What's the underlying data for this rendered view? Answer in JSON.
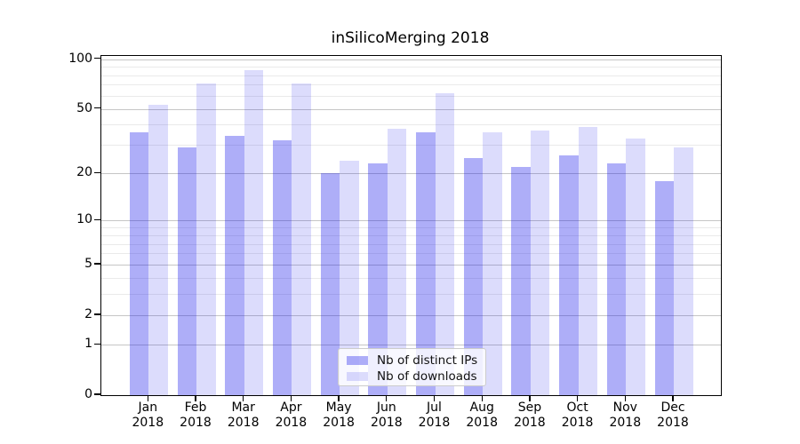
{
  "figure": {
    "background": "#ffffff"
  },
  "chart_data": {
    "type": "bar",
    "title": "inSilicoMerging 2018",
    "categories": [
      "Jan",
      "Feb",
      "Mar",
      "Apr",
      "May",
      "Jun",
      "Jul",
      "Aug",
      "Sep",
      "Oct",
      "Nov",
      "Dec"
    ],
    "category_year": "2018",
    "series": [
      {
        "name": "Nb of distinct IPs",
        "color": "#aaaaf6",
        "fill": "rgba(13,13,235,0.335)",
        "values": [
          36,
          29,
          34,
          32,
          20,
          23,
          36,
          25,
          22,
          26,
          23,
          18
        ]
      },
      {
        "name": "Nb of downloads",
        "color": "#dbdbfa",
        "fill": "rgba(13,13,235,0.145)",
        "values": [
          53,
          71,
          86,
          71,
          24,
          38,
          62,
          36,
          37,
          39,
          33,
          29
        ]
      }
    ],
    "yscale": "log1p",
    "ylim": [
      0,
      104.4
    ],
    "yticks_major": [
      100,
      50,
      20,
      10,
      5,
      2,
      1,
      0
    ],
    "yticks_minor": [
      90,
      80,
      70,
      60,
      40,
      30,
      9,
      8,
      7,
      6,
      4,
      3
    ],
    "grid": {
      "major_color": "#c6c6c6",
      "minor_color": "#eaeaea"
    },
    "legend_position": "lower-center",
    "xlabel": "",
    "ylabel": ""
  }
}
